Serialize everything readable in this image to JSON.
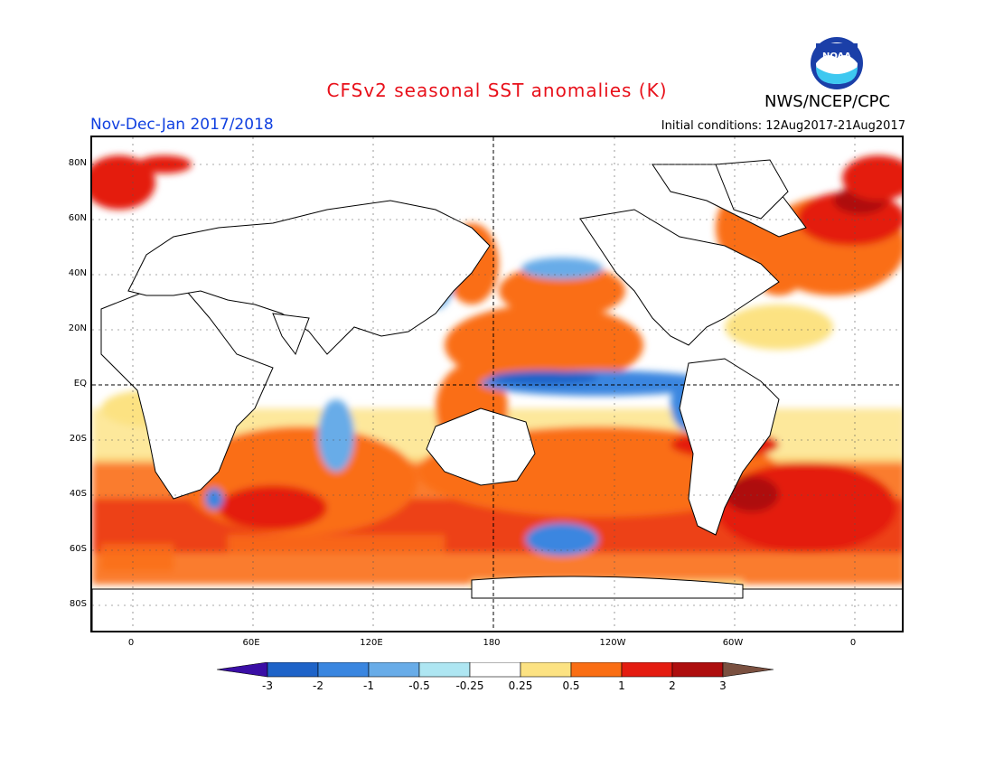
{
  "header": {
    "title": "CFSv2 seasonal SST anomalies (K)",
    "agency": "NWS/NCEP/CPC",
    "logo_text": "NOAA",
    "period": "Nov-Dec-Jan 2017/2018",
    "initial_conditions": "Initial conditions: 12Aug2017-21Aug2017"
  },
  "colors": {
    "title": "#e8101a",
    "period": "#1040e0"
  },
  "map": {
    "lat_labels": [
      "80N",
      "60N",
      "40N",
      "20N",
      "EQ",
      "20S",
      "40S",
      "60S",
      "80S"
    ],
    "lon_labels": [
      "0",
      "60E",
      "120E",
      "180",
      "120W",
      "60W",
      "0"
    ]
  },
  "colorbar": {
    "levels": [
      "-3",
      "-2",
      "-1",
      "-0.5",
      "-0.25",
      "0.25",
      "0.5",
      "1",
      "2",
      "3"
    ],
    "colors": [
      "#3a0ea5",
      "#1e63c8",
      "#3a86e0",
      "#68ace8",
      "#aee6f2",
      "#ffffff",
      "#fce282",
      "#fa6e14",
      "#e41c10",
      "#ae0e0e",
      "#7a5040"
    ]
  }
}
